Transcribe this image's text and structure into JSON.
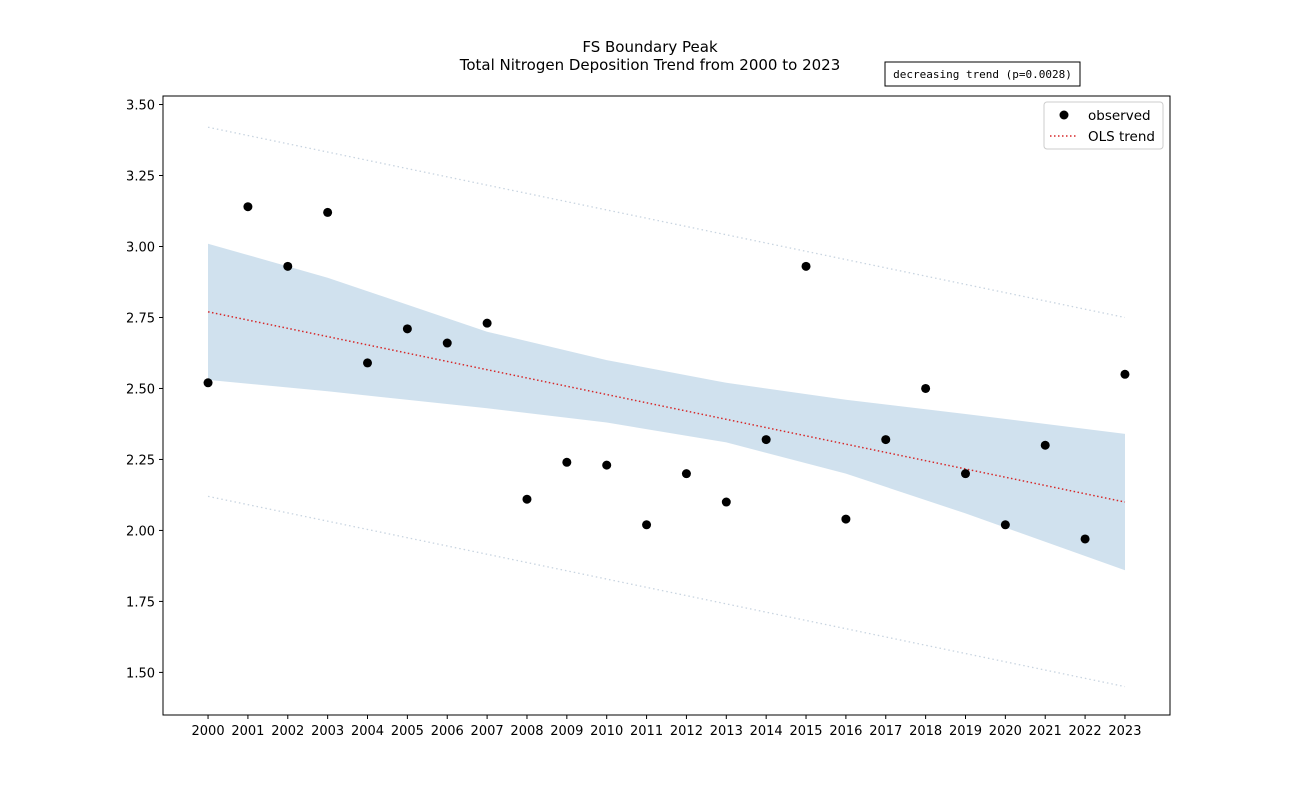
{
  "chart_data": {
    "type": "scatter",
    "title": "FS Boundary Peak",
    "subtitle": "Total Nitrogen Deposition Trend from 2000 to 2023",
    "xlabel": "",
    "ylabel": "",
    "x": [
      2000,
      2001,
      2002,
      2003,
      2004,
      2005,
      2006,
      2007,
      2008,
      2009,
      2010,
      2011,
      2012,
      2013,
      2014,
      2015,
      2016,
      2017,
      2018,
      2019,
      2020,
      2021,
      2022,
      2023
    ],
    "x_tick_labels": [
      "2000",
      "2001",
      "2002",
      "2003",
      "2004",
      "2005",
      "2006",
      "2007",
      "2008",
      "2009",
      "2010",
      "2011",
      "2012",
      "2013",
      "2014",
      "2015",
      "2016",
      "2017",
      "2018",
      "2019",
      "2020",
      "2021",
      "2022",
      "2023"
    ],
    "y_ticks": [
      1.5,
      1.75,
      2.0,
      2.25,
      2.5,
      2.75,
      3.0,
      3.25,
      3.5
    ],
    "y_tick_labels": [
      "1.50",
      "1.75",
      "2.00",
      "2.25",
      "2.50",
      "2.75",
      "3.00",
      "3.25",
      "3.50"
    ],
    "xlim": [
      1998.87,
      2024.13
    ],
    "ylim": [
      1.35,
      3.53
    ],
    "grid": false,
    "legend_position": "top-right",
    "series": [
      {
        "name": "observed",
        "kind": "scatter",
        "color": "#000000",
        "values": [
          2.52,
          3.14,
          2.93,
          3.12,
          2.59,
          2.71,
          2.66,
          2.73,
          2.11,
          2.24,
          2.23,
          2.02,
          2.2,
          2.1,
          2.32,
          2.93,
          2.04,
          2.32,
          2.5,
          2.2,
          2.02,
          2.3,
          1.97,
          2.55
        ]
      },
      {
        "name": "OLS trend",
        "kind": "line",
        "style": "dotted",
        "color": "#d62728",
        "start": [
          2000,
          2.77
        ],
        "end": [
          2023,
          2.1
        ]
      }
    ],
    "confidence_band": {
      "color": "#a9c8e0",
      "x": [
        2000,
        2003,
        2007,
        2010,
        2013,
        2016,
        2019,
        2023
      ],
      "upper": [
        3.01,
        2.89,
        2.7,
        2.6,
        2.52,
        2.46,
        2.41,
        2.34
      ],
      "lower": [
        2.53,
        2.49,
        2.43,
        2.38,
        2.31,
        2.2,
        2.06,
        1.86
      ]
    },
    "prediction_band": {
      "color": "#c8d4e0",
      "style": "dotted",
      "upper": [
        [
          2000,
          3.42
        ],
        [
          2023,
          2.75
        ]
      ],
      "lower": [
        [
          2000,
          2.12
        ],
        [
          2023,
          1.45
        ]
      ]
    },
    "annotation": "decreasing trend (p=0.0028)"
  }
}
